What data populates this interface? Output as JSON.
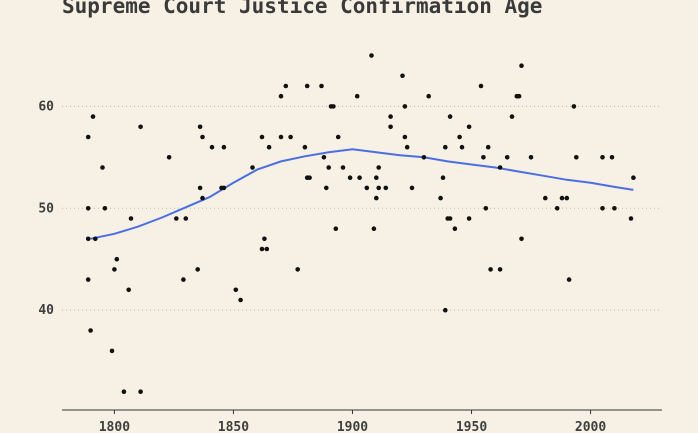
{
  "chart_data": {
    "type": "scatter",
    "title": "Supreme Court Justice Confirmation Age",
    "xlabel": "",
    "ylabel": "",
    "xlim": [
      1778,
      2030
    ],
    "ylim": [
      30.2,
      67.5
    ],
    "x_ticks": [
      1800,
      1850,
      1900,
      1950,
      2000
    ],
    "y_ticks": [
      40,
      50,
      60
    ],
    "grid": "horizontal dotted at y ticks",
    "colors": {
      "point": "#111111",
      "trend": "#4a6fe3",
      "background": "#f6f1e4",
      "grid": "#b5b5b5"
    },
    "points": [
      [
        1789,
        57
      ],
      [
        1789,
        50
      ],
      [
        1789,
        47
      ],
      [
        1789,
        43
      ],
      [
        1790,
        38
      ],
      [
        1791,
        59
      ],
      [
        1792,
        47
      ],
      [
        1795,
        54
      ],
      [
        1796,
        50
      ],
      [
        1799,
        36
      ],
      [
        1800,
        44
      ],
      [
        1801,
        45
      ],
      [
        1804,
        32
      ],
      [
        1806,
        42
      ],
      [
        1807,
        49
      ],
      [
        1811,
        58
      ],
      [
        1811,
        32
      ],
      [
        1823,
        55
      ],
      [
        1826,
        49
      ],
      [
        1829,
        43
      ],
      [
        1830,
        49
      ],
      [
        1835,
        44
      ],
      [
        1836,
        58
      ],
      [
        1836,
        52
      ],
      [
        1837,
        51
      ],
      [
        1837,
        57
      ],
      [
        1841,
        56
      ],
      [
        1845,
        52
      ],
      [
        1846,
        56
      ],
      [
        1846,
        52
      ],
      [
        1851,
        42
      ],
      [
        1853,
        41
      ],
      [
        1858,
        54
      ],
      [
        1862,
        57
      ],
      [
        1862,
        46
      ],
      [
        1863,
        47
      ],
      [
        1864,
        46
      ],
      [
        1865,
        56
      ],
      [
        1870,
        61
      ],
      [
        1870,
        57
      ],
      [
        1872,
        62
      ],
      [
        1874,
        57
      ],
      [
        1877,
        44
      ],
      [
        1880,
        56
      ],
      [
        1881,
        62
      ],
      [
        1881,
        53
      ],
      [
        1882,
        53
      ],
      [
        1887,
        62
      ],
      [
        1888,
        55
      ],
      [
        1889,
        52
      ],
      [
        1890,
        54
      ],
      [
        1891,
        60
      ],
      [
        1892,
        60
      ],
      [
        1893,
        48
      ],
      [
        1894,
        57
      ],
      [
        1896,
        54
      ],
      [
        1899,
        53
      ],
      [
        1902,
        61
      ],
      [
        1903,
        53
      ],
      [
        1906,
        52
      ],
      [
        1908,
        65
      ],
      [
        1909,
        48
      ],
      [
        1910,
        53
      ],
      [
        1910,
        51
      ],
      [
        1911,
        54
      ],
      [
        1911,
        52
      ],
      [
        1914,
        52
      ],
      [
        1916,
        59
      ],
      [
        1916,
        58
      ],
      [
        1921,
        63
      ],
      [
        1922,
        57
      ],
      [
        1922,
        60
      ],
      [
        1923,
        56
      ],
      [
        1925,
        52
      ],
      [
        1930,
        55
      ],
      [
        1932,
        61
      ],
      [
        1937,
        51
      ],
      [
        1938,
        53
      ],
      [
        1939,
        40
      ],
      [
        1939,
        56
      ],
      [
        1940,
        49
      ],
      [
        1941,
        59
      ],
      [
        1941,
        49
      ],
      [
        1943,
        48
      ],
      [
        1945,
        57
      ],
      [
        1946,
        56
      ],
      [
        1949,
        49
      ],
      [
        1949,
        58
      ],
      [
        1954,
        62
      ],
      [
        1955,
        55
      ],
      [
        1956,
        50
      ],
      [
        1957,
        56
      ],
      [
        1958,
        44
      ],
      [
        1962,
        54
      ],
      [
        1962,
        44
      ],
      [
        1965,
        55
      ],
      [
        1967,
        59
      ],
      [
        1969,
        61
      ],
      [
        1970,
        61
      ],
      [
        1971,
        47
      ],
      [
        1971,
        64
      ],
      [
        1975,
        55
      ],
      [
        1981,
        51
      ],
      [
        1986,
        50
      ],
      [
        1988,
        51
      ],
      [
        1990,
        51
      ],
      [
        1991,
        43
      ],
      [
        1993,
        60
      ],
      [
        1994,
        55
      ],
      [
        2005,
        55
      ],
      [
        2005,
        50
      ],
      [
        2009,
        55
      ],
      [
        2010,
        50
      ],
      [
        2017,
        49
      ],
      [
        2018,
        53
      ]
    ],
    "trend": [
      [
        1790,
        47
      ],
      [
        1800,
        47.5
      ],
      [
        1810,
        48.2
      ],
      [
        1820,
        49.1
      ],
      [
        1830,
        50.1
      ],
      [
        1840,
        51.1
      ],
      [
        1850,
        52.5
      ],
      [
        1860,
        53.8
      ],
      [
        1870,
        54.6
      ],
      [
        1880,
        55.1
      ],
      [
        1890,
        55.5
      ],
      [
        1900,
        55.8
      ],
      [
        1910,
        55.5
      ],
      [
        1920,
        55.2
      ],
      [
        1930,
        55
      ],
      [
        1940,
        54.6
      ],
      [
        1950,
        54.3
      ],
      [
        1960,
        54
      ],
      [
        1970,
        53.6
      ],
      [
        1980,
        53.2
      ],
      [
        1990,
        52.8
      ],
      [
        2000,
        52.5
      ],
      [
        2010,
        52.1
      ],
      [
        2018,
        51.8
      ]
    ]
  }
}
